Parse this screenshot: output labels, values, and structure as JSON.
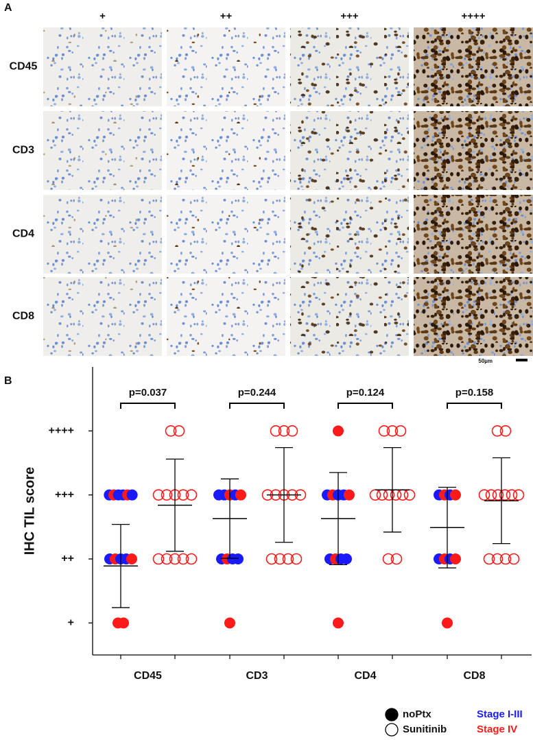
{
  "panel_a": {
    "label": "A",
    "columns": [
      "+",
      "++",
      "+++",
      "++++"
    ],
    "rows": [
      "CD45",
      "CD3",
      "CD4",
      "CD8"
    ],
    "scale_bar": "50µm"
  },
  "chart_data": {
    "label": "B",
    "type": "dot",
    "ylabel": "IHC TIL score",
    "categories": [
      "CD45",
      "CD3",
      "CD4",
      "CD8"
    ],
    "ylim": [
      0.5,
      5
    ],
    "yticks": [
      {
        "value": 1,
        "label": "+"
      },
      {
        "value": 2,
        "label": "++"
      },
      {
        "value": 3,
        "label": "+++"
      },
      {
        "value": 4,
        "label": "++++"
      }
    ],
    "p_values": [
      "p=0.037",
      "p=0.244",
      "p=0.124",
      "p=0.158"
    ],
    "stages": [
      {
        "name": "Stage I-III",
        "color": "#1a1aff"
      },
      {
        "name": "Stage IV",
        "color": "#ff1a1a"
      }
    ],
    "series": [
      {
        "name": "noPtx",
        "filled": true,
        "points": [
          [
            3,
            3,
            3,
            3,
            3,
            3,
            2,
            2,
            2,
            2,
            2,
            1,
            1
          ],
          [
            3,
            3,
            3,
            3,
            3,
            2,
            2,
            2,
            2,
            1
          ],
          [
            4,
            3,
            3,
            3,
            3,
            3,
            2,
            2,
            2,
            2,
            1
          ],
          [
            3,
            3,
            3,
            3,
            2,
            2,
            2,
            2,
            1
          ]
        ],
        "stages": [
          [
            0,
            1,
            0,
            0,
            1,
            0,
            0,
            1,
            0,
            0,
            1,
            1,
            1
          ],
          [
            0,
            0,
            1,
            0,
            1,
            0,
            1,
            0,
            0,
            1
          ],
          [
            1,
            0,
            1,
            0,
            0,
            1,
            0,
            1,
            0,
            0,
            1
          ],
          [
            0,
            1,
            0,
            1,
            0,
            1,
            0,
            1,
            1
          ]
        ],
        "mean": [
          1.89,
          2.63,
          2.63,
          2.49
        ],
        "sd": [
          0.65,
          0.62,
          0.72,
          0.63
        ]
      },
      {
        "name": "Sunitinib",
        "filled": false,
        "points": [
          [
            4,
            4,
            3,
            3,
            3,
            3,
            3,
            2,
            2,
            2,
            2,
            2
          ],
          [
            4,
            4,
            4,
            3,
            3,
            3,
            3,
            3,
            2,
            2,
            2,
            2
          ],
          [
            4,
            4,
            4,
            3,
            3,
            3,
            3,
            3,
            3,
            2,
            2
          ],
          [
            4,
            4,
            3,
            3,
            3,
            3,
            3,
            3,
            2,
            2,
            2,
            2
          ]
        ],
        "stages": [
          [
            1,
            1,
            1,
            1,
            1,
            1,
            1,
            1,
            1,
            1,
            1,
            1
          ],
          [
            1,
            1,
            1,
            1,
            1,
            1,
            1,
            1,
            1,
            1,
            1,
            1
          ],
          [
            1,
            1,
            1,
            1,
            1,
            1,
            1,
            1,
            1,
            1,
            1
          ],
          [
            1,
            1,
            1,
            1,
            1,
            1,
            1,
            1,
            1,
            1,
            1,
            1
          ]
        ],
        "mean": [
          2.84,
          3.0,
          3.08,
          2.91
        ],
        "sd": [
          0.72,
          0.74,
          0.66,
          0.67
        ]
      }
    ]
  }
}
